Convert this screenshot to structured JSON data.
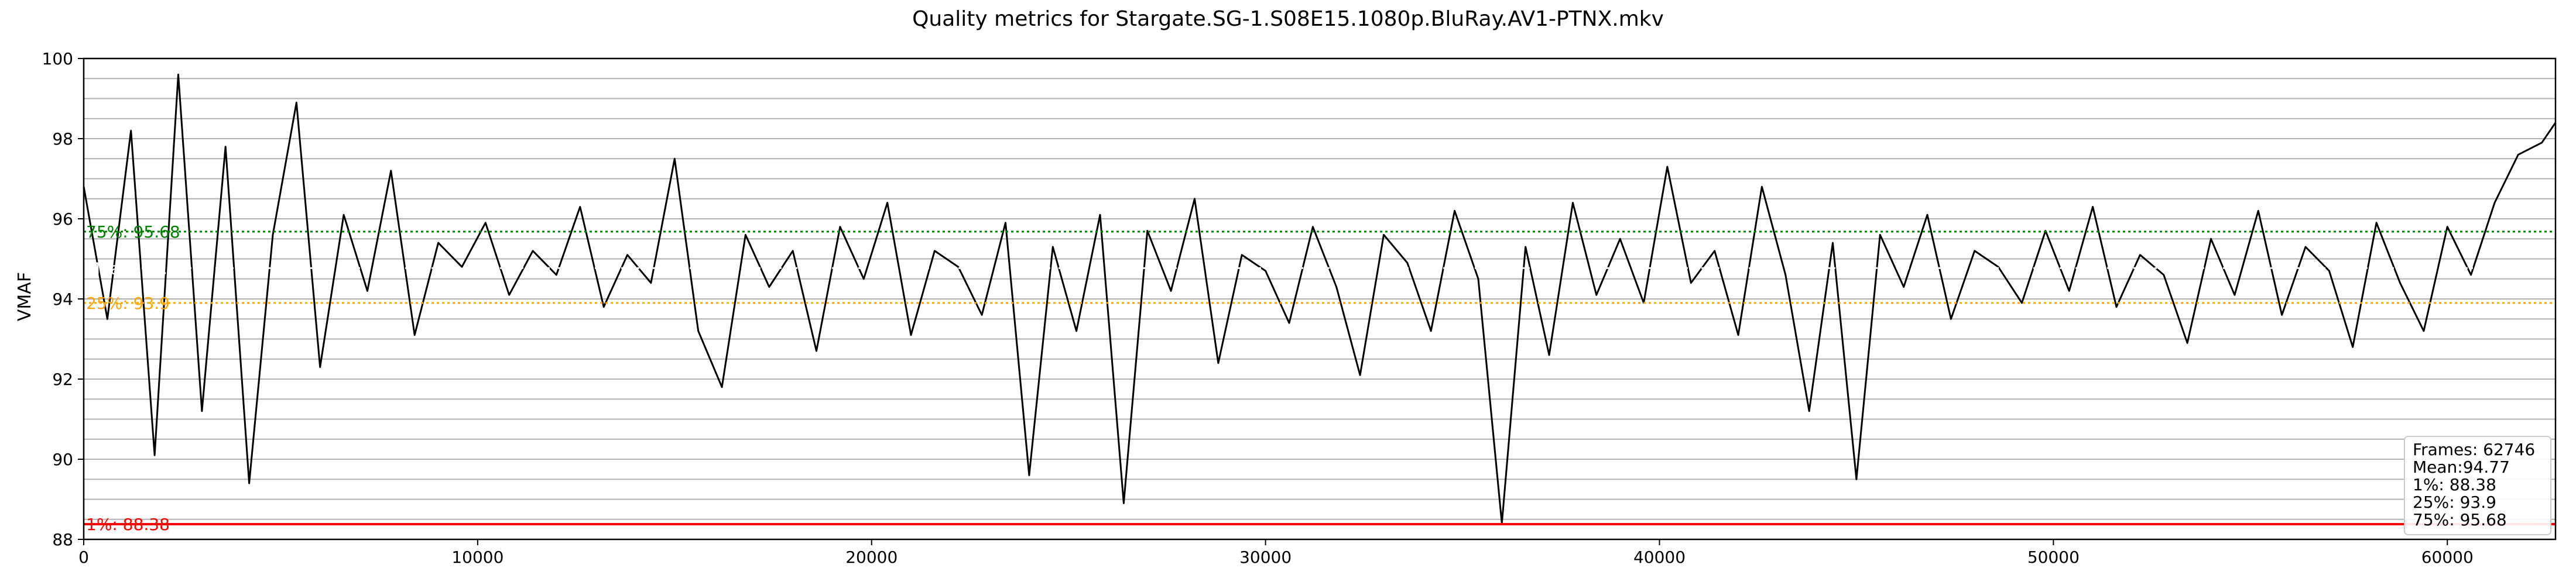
{
  "chart_data": {
    "type": "line",
    "title": "Quality metrics for Stargate.SG-1.S08E15.1080p.BluRay.AV1-PTNX.mkv",
    "xlabel": "",
    "ylabel": "VMAF",
    "xlim": [
      0,
      62746
    ],
    "ylim": [
      88,
      100
    ],
    "x_ticks": [
      0,
      10000,
      20000,
      30000,
      40000,
      50000,
      60000
    ],
    "x_tick_labels": [
      "0",
      "10000",
      "20000",
      "30000",
      "40000",
      "50000",
      "60000"
    ],
    "y_ticks": [
      88,
      90,
      92,
      94,
      96,
      98,
      100
    ],
    "y_tick_labels": [
      "88",
      "90",
      "92",
      "94",
      "96",
      "98",
      "100"
    ],
    "grid": true,
    "legend_position": "bottom-right",
    "series": [
      {
        "name": "VMAF",
        "color": "#000000",
        "x": [
          0,
          600,
          1200,
          1800,
          2400,
          3000,
          3600,
          4200,
          4800,
          5400,
          6000,
          6600,
          7200,
          7800,
          8400,
          9000,
          9600,
          10200,
          10800,
          11400,
          12000,
          12600,
          13200,
          13800,
          14400,
          15000,
          15600,
          16200,
          16800,
          17400,
          18000,
          18600,
          19200,
          19800,
          20400,
          21000,
          21600,
          22200,
          22800,
          23400,
          24000,
          24600,
          25200,
          25800,
          26400,
          27000,
          27600,
          28200,
          28800,
          29400,
          30000,
          30600,
          31200,
          31800,
          32400,
          33000,
          33600,
          34200,
          34800,
          35400,
          36000,
          36600,
          37200,
          37800,
          38400,
          39000,
          39600,
          40200,
          40800,
          41400,
          42000,
          42600,
          43200,
          43800,
          44400,
          45000,
          45600,
          46200,
          46800,
          47400,
          48000,
          48600,
          49200,
          49800,
          50400,
          51000,
          51600,
          52200,
          52800,
          53400,
          54000,
          54600,
          55200,
          55800,
          56400,
          57000,
          57600,
          58200,
          58800,
          59400,
          60000,
          60600,
          61200,
          61800,
          62400,
          62746
        ],
        "y": [
          96.8,
          93.5,
          98.2,
          90.1,
          99.6,
          91.2,
          97.8,
          89.4,
          95.6,
          98.9,
          92.3,
          96.1,
          94.2,
          97.2,
          93.1,
          95.4,
          94.8,
          95.9,
          94.1,
          95.2,
          94.6,
          96.3,
          93.8,
          95.1,
          94.4,
          97.5,
          93.2,
          91.8,
          95.6,
          94.3,
          95.2,
          92.7,
          95.8,
          94.5,
          96.4,
          93.1,
          95.2,
          94.8,
          93.6,
          95.9,
          89.6,
          95.3,
          93.2,
          96.1,
          88.9,
          95.7,
          94.2,
          96.5,
          92.4,
          95.1,
          94.7,
          93.4,
          95.8,
          94.3,
          92.1,
          95.6,
          94.9,
          93.2,
          96.2,
          94.5,
          88.4,
          95.3,
          92.6,
          96.4,
          94.1,
          95.5,
          93.9,
          97.3,
          94.4,
          95.2,
          93.1,
          96.8,
          94.6,
          91.2,
          95.4,
          89.5,
          95.6,
          94.3,
          96.1,
          93.5,
          95.2,
          94.8,
          93.9,
          95.7,
          94.2,
          96.3,
          93.8,
          95.1,
          94.6,
          92.9,
          95.5,
          94.1,
          96.2,
          93.6,
          95.3,
          94.7,
          92.8,
          95.9,
          94.4,
          93.2,
          95.8,
          94.6,
          96.4,
          97.6,
          97.9,
          98.4
        ]
      }
    ],
    "reference_lines": [
      {
        "label": "1%: 88.38",
        "value": 88.38,
        "color": "#ff0000",
        "style": "solid"
      },
      {
        "label": "25%: 93.9",
        "value": 93.9,
        "color": "#ffa500",
        "style": "dotted"
      },
      {
        "label": "Mean: 94.77",
        "value": 94.77,
        "color": "#ffffff",
        "style": "dotted"
      },
      {
        "label": "75%: 95.68",
        "value": 95.68,
        "color": "#008000",
        "style": "dotted"
      }
    ],
    "legend_lines": [
      "Frames: 62746",
      "Mean:94.77",
      "1%: 88.38",
      "25%: 93.9",
      "75%: 95.68"
    ]
  }
}
